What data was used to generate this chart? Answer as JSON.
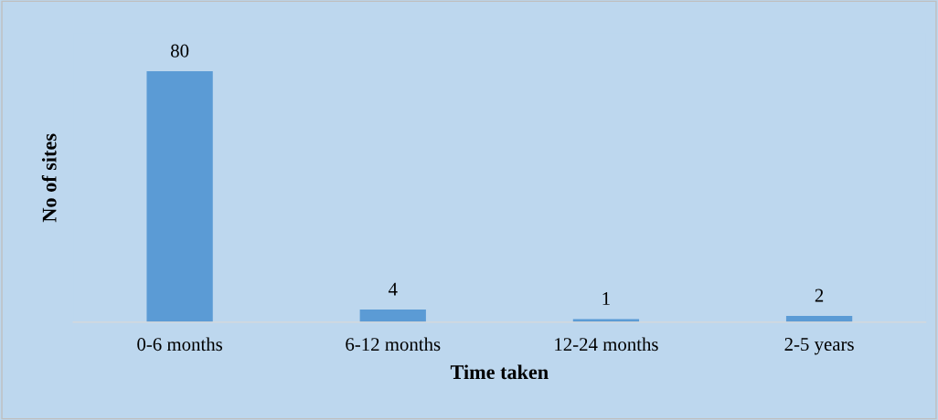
{
  "chart_data": {
    "type": "bar",
    "xlabel": "Time taken",
    "ylabel": "No of sites",
    "categories": [
      "0-6 months",
      "6-12 months",
      "12-24 months",
      "2-5 years"
    ],
    "values": [
      80,
      4,
      1,
      2
    ],
    "color": "#5b9bd5",
    "data_labels": true,
    "grid": false,
    "legend": false,
    "tick_labels": "x"
  }
}
